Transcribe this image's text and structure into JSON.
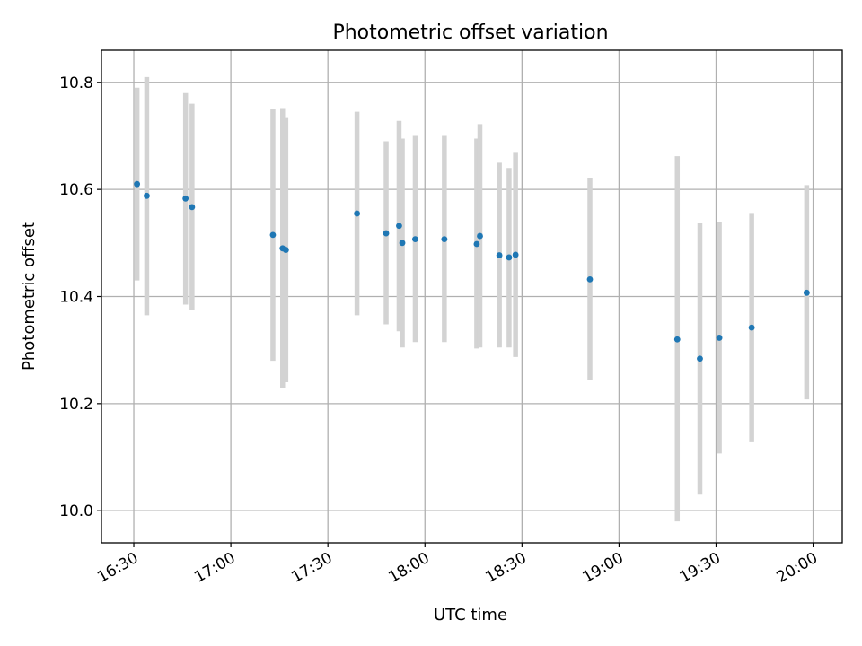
{
  "chart_data": {
    "type": "scatter",
    "title": "Photometric offset variation",
    "xlabel": "UTC time",
    "ylabel": "Photometric offset",
    "x_range": [
      "16:20",
      "20:09"
    ],
    "ylim": [
      9.94,
      10.86
    ],
    "x_ticks": [
      "16:30",
      "17:00",
      "17:30",
      "18:00",
      "18:30",
      "19:00",
      "19:30",
      "20:00"
    ],
    "y_ticks": [
      10.0,
      10.2,
      10.4,
      10.6,
      10.8
    ],
    "y_tick_labels": [
      "10.0",
      "10.2",
      "10.4",
      "10.6",
      "10.8"
    ],
    "grid": true,
    "x_tick_rotation_deg": 30,
    "colors": {
      "point": "#1f77b4",
      "error_bar": "#d3d3d3"
    },
    "points": [
      {
        "x": "16:31",
        "y": 10.61,
        "y_low": 10.43,
        "y_high": 10.79
      },
      {
        "x": "16:34",
        "y": 10.588,
        "y_low": 10.365,
        "y_high": 10.81
      },
      {
        "x": "16:46",
        "y": 10.583,
        "y_low": 10.385,
        "y_high": 10.78
      },
      {
        "x": "16:48",
        "y": 10.567,
        "y_low": 10.375,
        "y_high": 10.76
      },
      {
        "x": "17:13",
        "y": 10.515,
        "y_low": 10.28,
        "y_high": 10.75
      },
      {
        "x": "17:16",
        "y": 10.49,
        "y_low": 10.23,
        "y_high": 10.752
      },
      {
        "x": "17:17",
        "y": 10.487,
        "y_low": 10.24,
        "y_high": 10.735
      },
      {
        "x": "17:39",
        "y": 10.555,
        "y_low": 10.365,
        "y_high": 10.745
      },
      {
        "x": "17:48",
        "y": 10.518,
        "y_low": 10.348,
        "y_high": 10.69
      },
      {
        "x": "17:52",
        "y": 10.532,
        "y_low": 10.335,
        "y_high": 10.728
      },
      {
        "x": "17:53",
        "y": 10.5,
        "y_low": 10.305,
        "y_high": 10.695
      },
      {
        "x": "17:57",
        "y": 10.507,
        "y_low": 10.315,
        "y_high": 10.7
      },
      {
        "x": "18:06",
        "y": 10.507,
        "y_low": 10.315,
        "y_high": 10.7
      },
      {
        "x": "18:16",
        "y": 10.498,
        "y_low": 10.303,
        "y_high": 10.695
      },
      {
        "x": "18:17",
        "y": 10.513,
        "y_low": 10.305,
        "y_high": 10.722
      },
      {
        "x": "18:23",
        "y": 10.477,
        "y_low": 10.305,
        "y_high": 10.65
      },
      {
        "x": "18:26",
        "y": 10.473,
        "y_low": 10.305,
        "y_high": 10.64
      },
      {
        "x": "18:28",
        "y": 10.478,
        "y_low": 10.287,
        "y_high": 10.67
      },
      {
        "x": "18:51",
        "y": 10.432,
        "y_low": 10.245,
        "y_high": 10.622
      },
      {
        "x": "19:18",
        "y": 10.32,
        "y_low": 9.98,
        "y_high": 10.662
      },
      {
        "x": "19:25",
        "y": 10.284,
        "y_low": 10.03,
        "y_high": 10.538
      },
      {
        "x": "19:31",
        "y": 10.323,
        "y_low": 10.107,
        "y_high": 10.54
      },
      {
        "x": "19:41",
        "y": 10.342,
        "y_low": 10.128,
        "y_high": 10.556
      },
      {
        "x": "19:58",
        "y": 10.407,
        "y_low": 10.208,
        "y_high": 10.608
      }
    ]
  }
}
